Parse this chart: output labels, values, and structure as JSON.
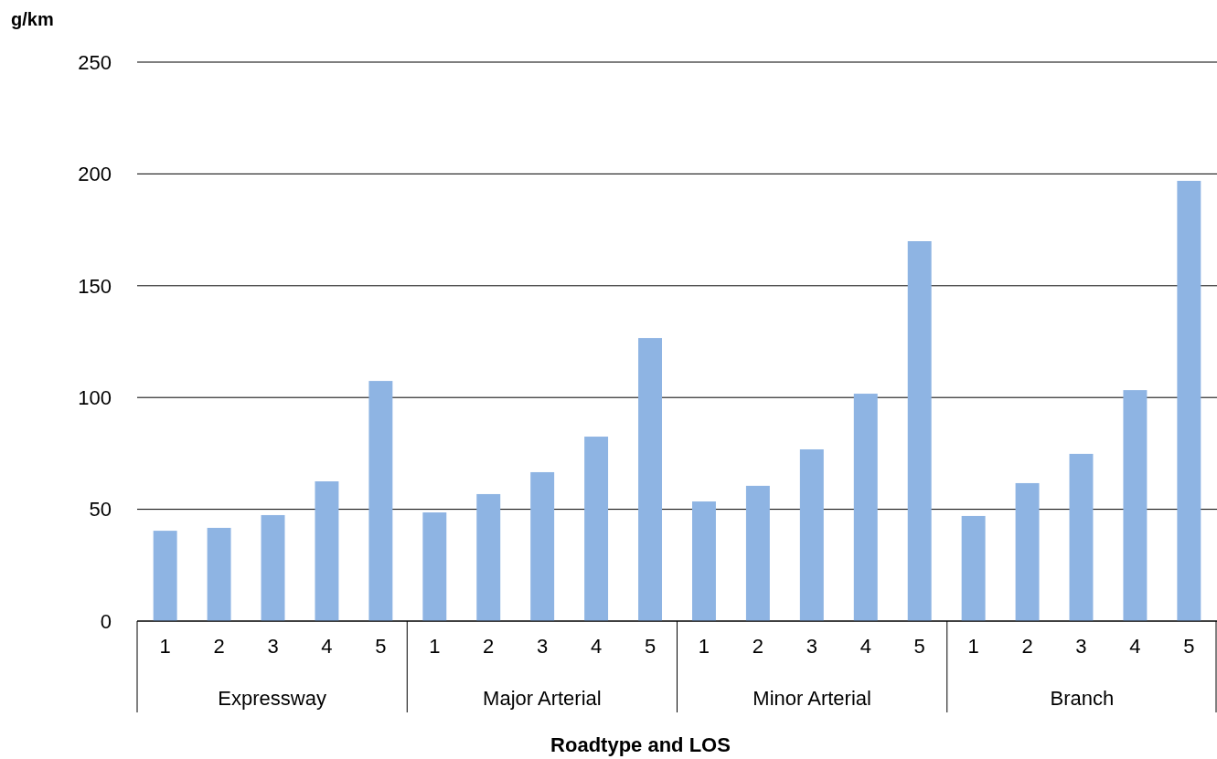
{
  "chart_data": {
    "type": "bar",
    "ylabel": "g/km",
    "xlabel": "Roadtype and LOS",
    "categories": [
      "1",
      "2",
      "3",
      "4",
      "5",
      "1",
      "2",
      "3",
      "4",
      "5",
      "1",
      "2",
      "3",
      "4",
      "5",
      "1",
      "2",
      "3",
      "4",
      "5"
    ],
    "values": [
      40.4,
      41.7,
      47.4,
      62.5,
      107.4,
      48.6,
      56.8,
      66.6,
      82.5,
      126.6,
      53.5,
      60.5,
      76.8,
      101.7,
      169.9,
      47,
      61.7,
      74.8,
      103.3,
      196.9
    ],
    "color": "#8eb4e3",
    "ylim": [
      0,
      250
    ],
    "yticks": [
      0,
      50,
      100,
      150,
      200,
      250
    ],
    "grid": "y",
    "annotations": [
      "Expressway",
      "Major Arterial",
      "Minor Arterial",
      "Branch"
    ]
  }
}
